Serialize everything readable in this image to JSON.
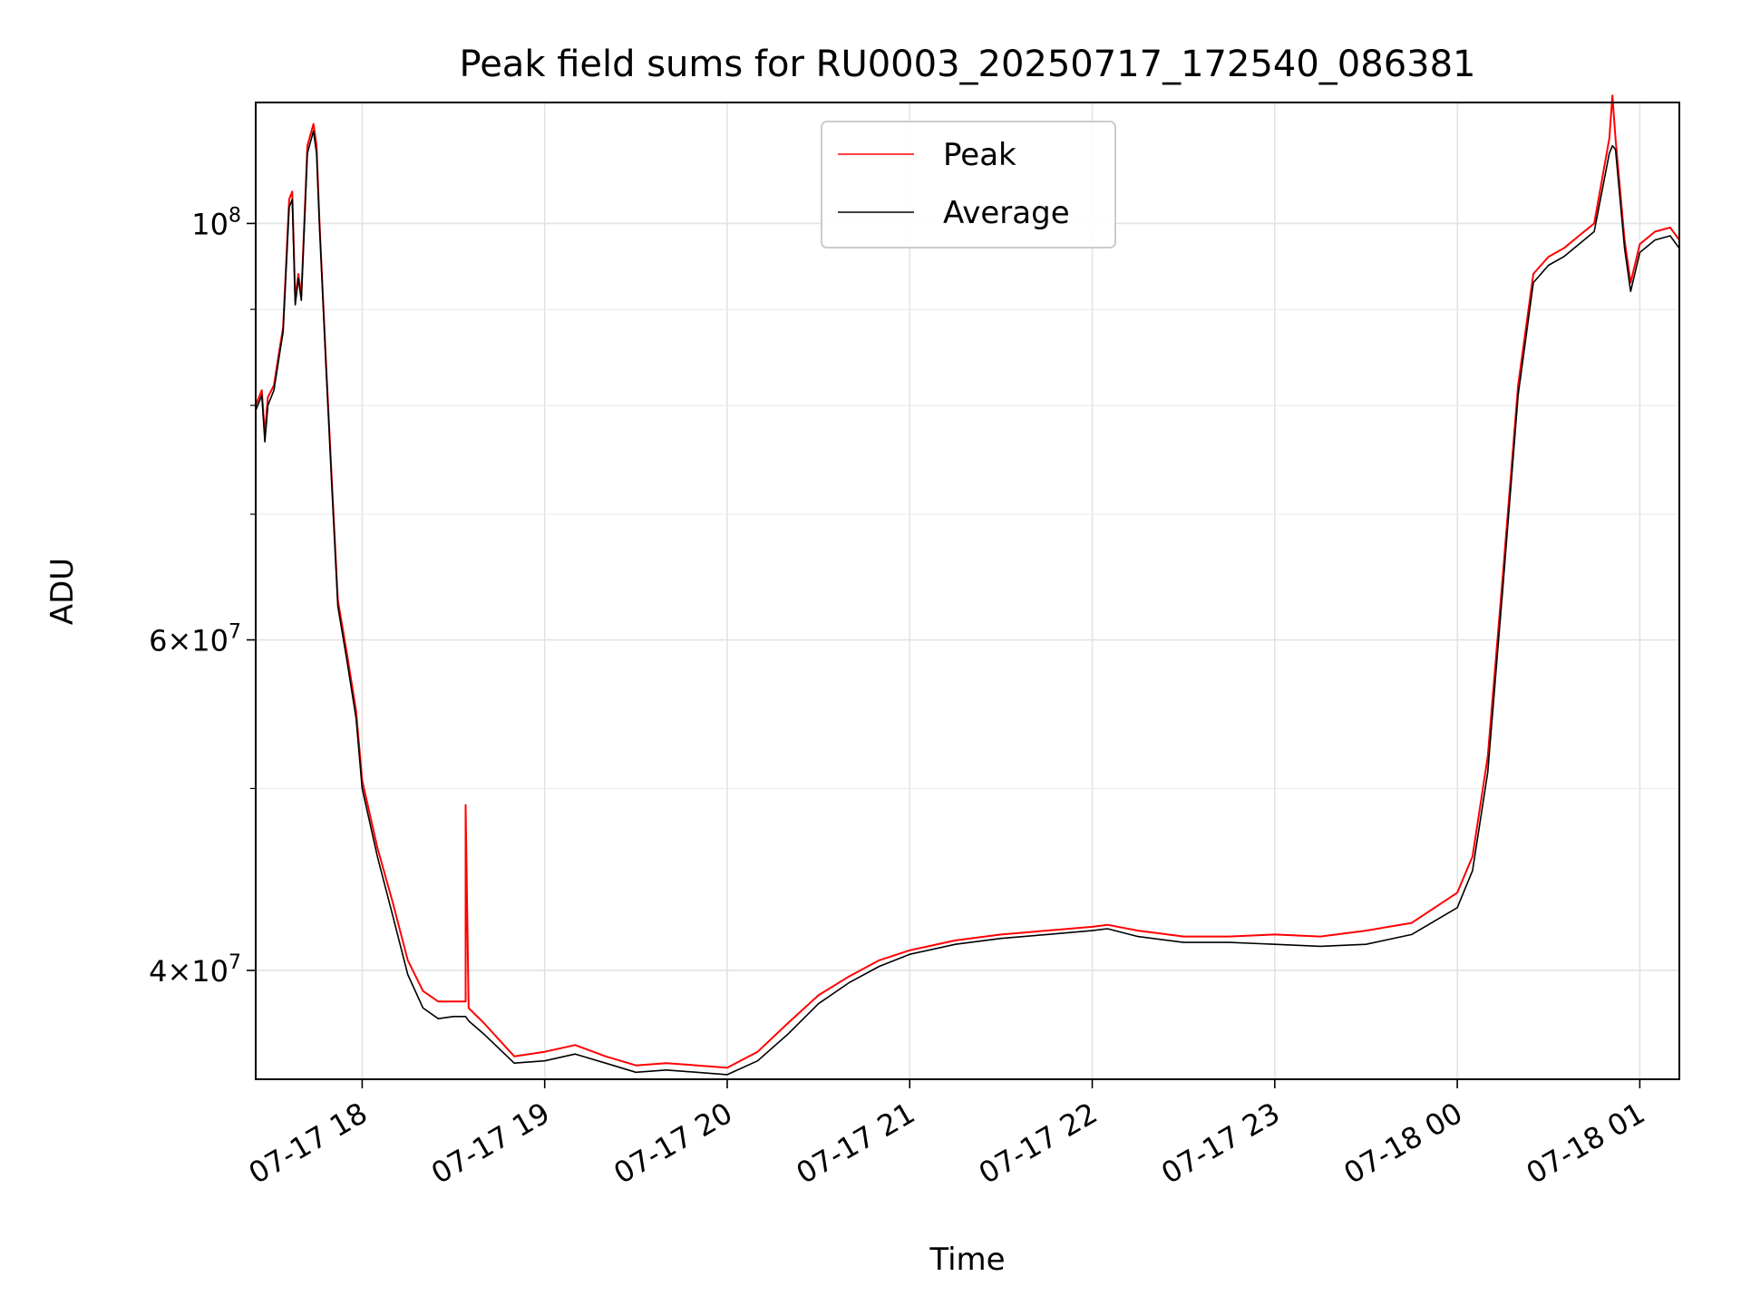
{
  "chart_data": {
    "type": "line",
    "title": "Peak field sums for RU0003_20250717_172540_086381",
    "xlabel": "Time",
    "ylabel": "ADU",
    "xscale": "time",
    "yscale": "log",
    "xlim": [
      "2025-07-17 17:25",
      "2025-07-18 01:13"
    ],
    "ylim": [
      35000000,
      116000000
    ],
    "grid": true,
    "legend_position": "top-center",
    "x_ticks": [
      "07-17 18",
      "07-17 19",
      "07-17 20",
      "07-17 21",
      "07-17 22",
      "07-17 23",
      "07-18 00",
      "07-18 01"
    ],
    "y_ticks": [
      {
        "value": 40000000,
        "base": "4",
        "exponent": "7"
      },
      {
        "value": 60000000,
        "base": "6",
        "exponent": "7"
      },
      {
        "value": 100000000,
        "base": "10",
        "exponent": "8"
      }
    ],
    "series": [
      {
        "name": "Peak",
        "color": "#ff0000",
        "x": [
          "2025-07-17 17:25",
          "2025-07-17 17:27",
          "2025-07-17 17:28",
          "2025-07-17 17:29",
          "2025-07-17 17:31",
          "2025-07-17 17:33",
          "2025-07-17 17:34",
          "2025-07-17 17:36",
          "2025-07-17 17:37",
          "2025-07-17 17:38",
          "2025-07-17 17:39",
          "2025-07-17 17:40",
          "2025-07-17 17:42",
          "2025-07-17 17:44",
          "2025-07-17 17:45",
          "2025-07-17 17:46",
          "2025-07-17 17:48",
          "2025-07-17 17:50",
          "2025-07-17 17:52",
          "2025-07-17 17:55",
          "2025-07-17 17:58",
          "2025-07-17 18:00",
          "2025-07-17 18:05",
          "2025-07-17 18:10",
          "2025-07-17 18:15",
          "2025-07-17 18:20",
          "2025-07-17 18:25",
          "2025-07-17 18:30",
          "2025-07-17 18:34",
          "2025-07-17 18:34",
          "2025-07-17 18:35",
          "2025-07-17 18:40",
          "2025-07-17 18:50",
          "2025-07-17 19:00",
          "2025-07-17 19:10",
          "2025-07-17 19:20",
          "2025-07-17 19:30",
          "2025-07-17 19:40",
          "2025-07-17 19:50",
          "2025-07-17 20:00",
          "2025-07-17 20:10",
          "2025-07-17 20:20",
          "2025-07-17 20:30",
          "2025-07-17 20:40",
          "2025-07-17 20:50",
          "2025-07-17 21:00",
          "2025-07-17 21:15",
          "2025-07-17 21:30",
          "2025-07-17 21:45",
          "2025-07-17 22:00",
          "2025-07-17 22:05",
          "2025-07-17 22:15",
          "2025-07-17 22:30",
          "2025-07-17 22:45",
          "2025-07-17 23:00",
          "2025-07-17 23:15",
          "2025-07-17 23:30",
          "2025-07-17 23:45",
          "2025-07-18 00:00",
          "2025-07-18 00:05",
          "2025-07-18 00:10",
          "2025-07-18 00:15",
          "2025-07-18 00:20",
          "2025-07-18 00:25",
          "2025-07-18 00:30",
          "2025-07-18 00:35",
          "2025-07-18 00:40",
          "2025-07-18 00:45",
          "2025-07-18 00:50",
          "2025-07-18 00:51",
          "2025-07-18 00:52",
          "2025-07-18 00:55",
          "2025-07-18 00:57",
          "2025-07-18 01:00",
          "2025-07-18 01:05",
          "2025-07-18 01:10",
          "2025-07-18 01:13"
        ],
        "values": [
          80000000,
          81500000,
          77200000,
          80800000,
          82000000,
          86000000,
          88000000,
          103000000,
          104000000,
          91000000,
          94000000,
          91500000,
          110000000,
          113000000,
          110000000,
          100000000,
          85000000,
          73000000,
          63000000,
          59000000,
          55000000,
          50500000,
          46500000,
          43500000,
          40500000,
          39000000,
          38500000,
          38500000,
          38500000,
          49000000,
          38200000,
          37500000,
          36000000,
          36200000,
          36500000,
          36000000,
          35600000,
          35700000,
          35600000,
          35500000,
          36200000,
          37500000,
          38800000,
          39700000,
          40500000,
          41000000,
          41500000,
          41800000,
          42000000,
          42200000,
          42300000,
          42000000,
          41700000,
          41700000,
          41800000,
          41700000,
          42000000,
          42400000,
          44000000,
          46000000,
          52000000,
          65000000,
          82000000,
          94000000,
          96000000,
          97000000,
          98500000,
          100000000,
          111000000,
          117000000,
          111000000,
          98000000,
          93000000,
          97500000,
          99000000,
          99500000,
          98000000
        ]
      },
      {
        "name": "Average",
        "color": "#000000",
        "x": [
          "2025-07-17 17:25",
          "2025-07-17 17:27",
          "2025-07-17 17:28",
          "2025-07-17 17:29",
          "2025-07-17 17:31",
          "2025-07-17 17:33",
          "2025-07-17 17:34",
          "2025-07-17 17:36",
          "2025-07-17 17:37",
          "2025-07-17 17:38",
          "2025-07-17 17:39",
          "2025-07-17 17:40",
          "2025-07-17 17:42",
          "2025-07-17 17:44",
          "2025-07-17 17:45",
          "2025-07-17 17:46",
          "2025-07-17 17:48",
          "2025-07-17 17:50",
          "2025-07-17 17:52",
          "2025-07-17 17:55",
          "2025-07-17 17:58",
          "2025-07-17 18:00",
          "2025-07-17 18:05",
          "2025-07-17 18:10",
          "2025-07-17 18:15",
          "2025-07-17 18:20",
          "2025-07-17 18:25",
          "2025-07-17 18:30",
          "2025-07-17 18:34",
          "2025-07-17 18:34",
          "2025-07-17 18:35",
          "2025-07-17 18:40",
          "2025-07-17 18:50",
          "2025-07-17 19:00",
          "2025-07-17 19:10",
          "2025-07-17 19:20",
          "2025-07-17 19:30",
          "2025-07-17 19:40",
          "2025-07-17 19:50",
          "2025-07-17 20:00",
          "2025-07-17 20:10",
          "2025-07-17 20:20",
          "2025-07-17 20:30",
          "2025-07-17 20:40",
          "2025-07-17 20:50",
          "2025-07-17 21:00",
          "2025-07-17 21:15",
          "2025-07-17 21:30",
          "2025-07-17 21:45",
          "2025-07-17 22:00",
          "2025-07-17 22:05",
          "2025-07-17 22:15",
          "2025-07-17 22:30",
          "2025-07-17 22:45",
          "2025-07-17 23:00",
          "2025-07-17 23:15",
          "2025-07-17 23:30",
          "2025-07-17 23:45",
          "2025-07-18 00:00",
          "2025-07-18 00:05",
          "2025-07-18 00:10",
          "2025-07-18 00:15",
          "2025-07-18 00:20",
          "2025-07-18 00:25",
          "2025-07-18 00:30",
          "2025-07-18 00:35",
          "2025-07-18 00:40",
          "2025-07-18 00:45",
          "2025-07-18 00:50",
          "2025-07-18 00:51",
          "2025-07-18 00:52",
          "2025-07-18 00:55",
          "2025-07-18 00:57",
          "2025-07-18 01:00",
          "2025-07-18 01:05",
          "2025-07-18 01:10",
          "2025-07-18 01:13"
        ],
        "values": [
          79500000,
          81000000,
          76500000,
          80000000,
          81500000,
          85500000,
          87500000,
          102000000,
          103000000,
          90500000,
          93500000,
          91000000,
          109000000,
          112000000,
          109000000,
          99500000,
          84500000,
          72500000,
          62500000,
          58500000,
          54500000,
          50000000,
          46000000,
          42800000,
          39800000,
          38200000,
          37700000,
          37800000,
          37800000,
          37800000,
          37600000,
          37000000,
          35700000,
          35800000,
          36100000,
          35700000,
          35300000,
          35400000,
          35300000,
          35200000,
          35800000,
          37000000,
          38400000,
          39400000,
          40200000,
          40800000,
          41300000,
          41600000,
          41800000,
          42000000,
          42100000,
          41700000,
          41400000,
          41400000,
          41300000,
          41200000,
          41300000,
          41800000,
          43200000,
          45200000,
          51000000,
          64000000,
          81000000,
          93000000,
          95000000,
          96000000,
          97500000,
          99000000,
          109000000,
          110000000,
          109500000,
          97000000,
          92000000,
          96500000,
          98000000,
          98500000,
          97000000
        ]
      }
    ]
  }
}
